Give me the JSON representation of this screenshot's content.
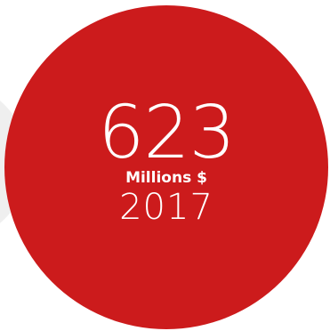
{
  "stat": {
    "value": "623",
    "unit": "Millions $",
    "year": "2017"
  },
  "colors": {
    "circle": "#cc1b1c",
    "ghost_circle": "#efefef",
    "text": "#ffffff"
  }
}
